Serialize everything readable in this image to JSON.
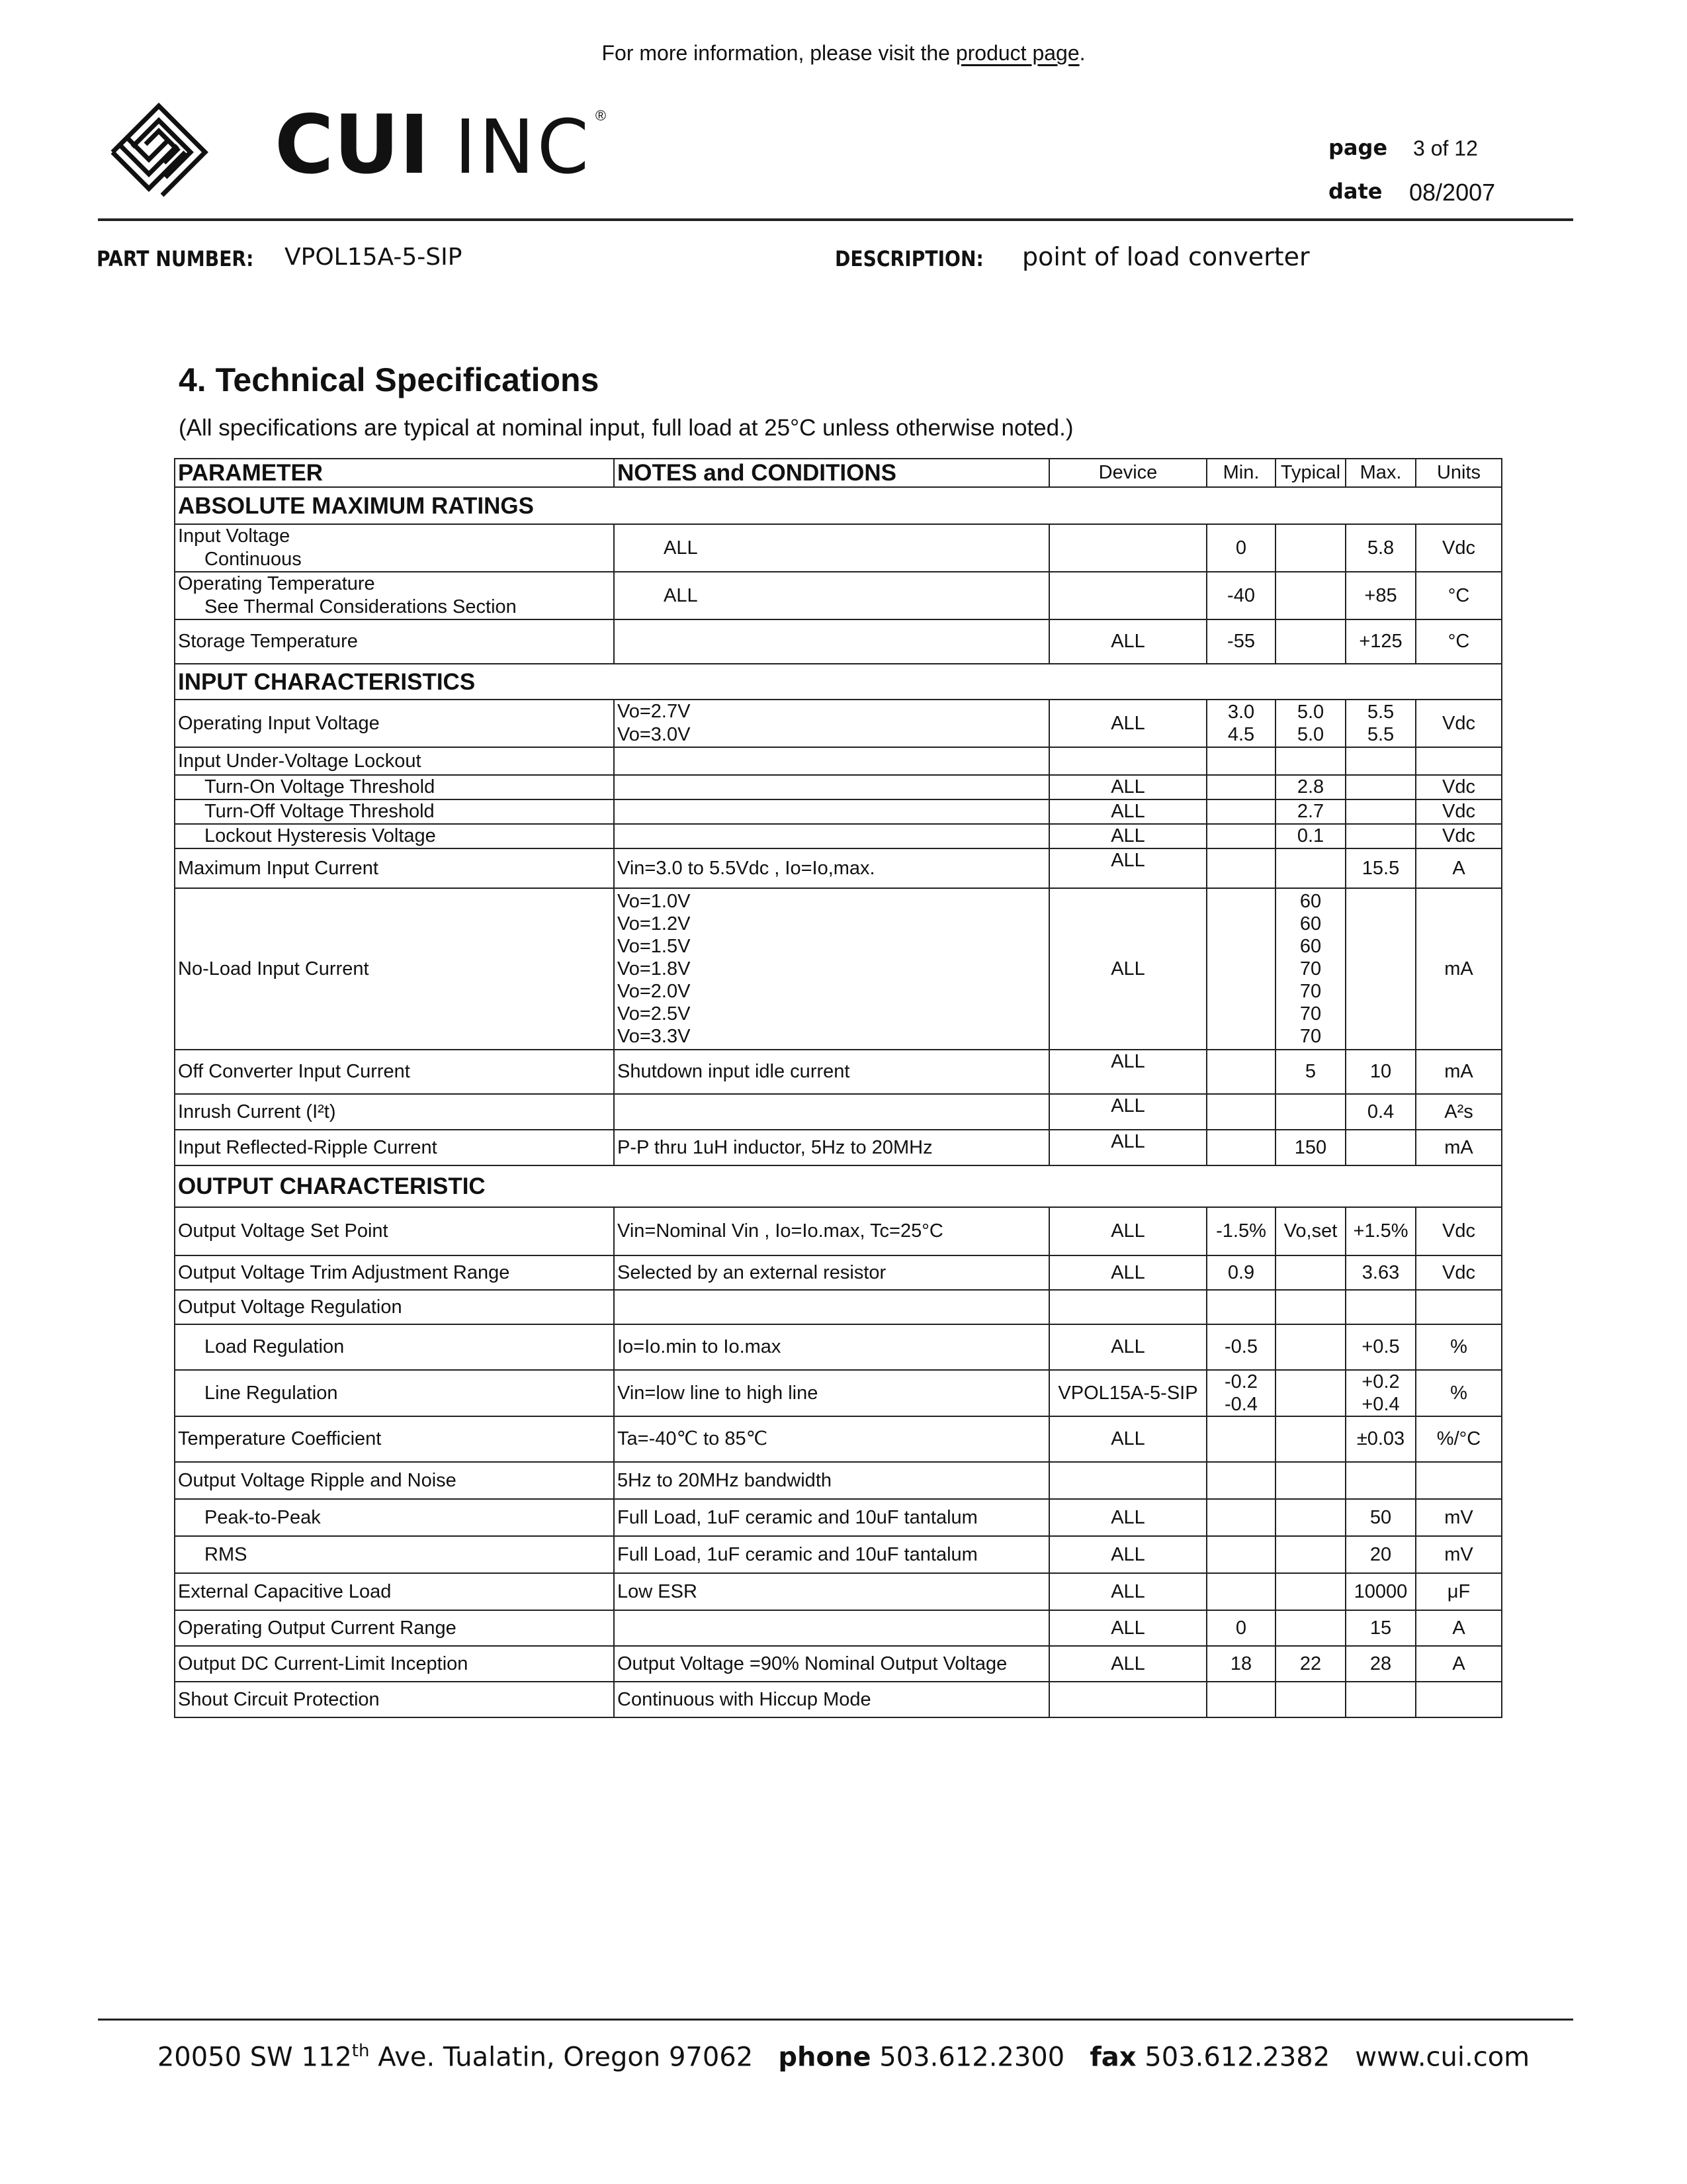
{
  "top_note": {
    "text": "For more information, please visit the ",
    "link": "product page",
    "end": "."
  },
  "logo": {
    "name_bold": "CUI",
    "name_light": "INC",
    "registered": "®"
  },
  "meta": {
    "page_label": "page",
    "page_value": "3 of 12",
    "date_label": "date",
    "date_value": "08/2007"
  },
  "part": {
    "label": "PART NUMBER:",
    "value": "VPOL15A-5-SIP"
  },
  "description": {
    "label": "DESCRIPTION:",
    "value": "point of load converter"
  },
  "section": {
    "title": "4. Technical Specifications",
    "subtitle": "(All specifications are typical at nominal input, full load at 25°C unless otherwise noted.)"
  },
  "table": {
    "headers": [
      "PARAMETER",
      "NOTES and CONDITIONS",
      "Device",
      "Min.",
      "Typical",
      "Max.",
      "Units"
    ],
    "rows": [
      {
        "section": "ABSOLUTE MAXIMUM RATINGS"
      },
      {
        "param": [
          "Input Voltage",
          "Continuous"
        ],
        "notes": [
          "ALL"
        ],
        "notes_indent": true,
        "device": "",
        "min": "0",
        "typ": "",
        "max": "5.8",
        "units": "Vdc"
      },
      {
        "param": [
          "Operating Temperature",
          "See Thermal Considerations Section"
        ],
        "notes": [
          "ALL"
        ],
        "notes_indent": true,
        "device": "",
        "min": "-40",
        "typ": "",
        "max": "+85",
        "units": "°C"
      },
      {
        "param": [
          "Storage Temperature"
        ],
        "notes": [
          ""
        ],
        "device": "ALL",
        "min": "-55",
        "typ": "",
        "max": "+125",
        "units": "°C"
      },
      {
        "section": "INPUT CHARACTERISTICS"
      },
      {
        "param": [
          "Operating Input Voltage"
        ],
        "notes": [
          "Vo=2.7V",
          "Vo=3.0V"
        ],
        "device": "ALL",
        "min": "3.0\n4.5",
        "typ": "5.0\n5.0",
        "max": "5.5\n5.5",
        "units": "Vdc"
      },
      {
        "param": [
          "Input Under-Voltage Lockout"
        ],
        "notes": [
          ""
        ],
        "device": "",
        "min": "",
        "typ": "",
        "max": "",
        "units": ""
      },
      {
        "param": [
          "Turn-On Voltage Threshold"
        ],
        "indent": true,
        "notes": [
          ""
        ],
        "device": "ALL",
        "min": "",
        "typ": "2.8",
        "max": "",
        "units": "Vdc"
      },
      {
        "param": [
          "Turn-Off Voltage Threshold"
        ],
        "indent": true,
        "notes": [
          ""
        ],
        "device": "ALL",
        "min": "",
        "typ": "2.7",
        "max": "",
        "units": "Vdc"
      },
      {
        "param": [
          "Lockout Hysteresis Voltage"
        ],
        "indent": true,
        "notes": [
          ""
        ],
        "device": "ALL",
        "min": "",
        "typ": "0.1",
        "max": "",
        "units": "Vdc"
      },
      {
        "param": [
          "Maximum Input Current"
        ],
        "notes": [
          "Vin=3.0 to 5.5Vdc , Io=Io,max."
        ],
        "device": "ALL",
        "device_top": true,
        "min": "",
        "typ": "",
        "max": "15.5",
        "units": "A"
      },
      {
        "param": [
          "No-Load Input Current"
        ],
        "notes": [
          "Vo=1.0V",
          "Vo=1.2V",
          "Vo=1.5V",
          "Vo=1.8V",
          "Vo=2.0V",
          "Vo=2.5V",
          "Vo=3.3V"
        ],
        "device": "ALL",
        "min": "",
        "typ": "60\n60\n60\n70\n70\n70\n70",
        "max": "",
        "units": "mA"
      },
      {
        "param": [
          "Off Converter Input Current"
        ],
        "notes": [
          "Shutdown input idle current"
        ],
        "device": "ALL",
        "device_top": true,
        "min": "",
        "typ": "5",
        "max": "10",
        "units": "mA"
      },
      {
        "param": [
          "Inrush Current (I²t)"
        ],
        "notes": [
          ""
        ],
        "device": "ALL",
        "device_top": true,
        "min": "",
        "typ": "",
        "max": "0.4",
        "units": "A²s"
      },
      {
        "param": [
          "Input Reflected-Ripple Current"
        ],
        "notes": [
          "P-P thru 1uH inductor, 5Hz to 20MHz"
        ],
        "device": "ALL",
        "device_top": true,
        "min": "",
        "typ": "150",
        "max": "",
        "units": "mA"
      },
      {
        "section": "OUTPUT CHARACTERISTIC"
      },
      {
        "param": [
          "Output Voltage Set Point"
        ],
        "notes": [
          "Vin=Nominal Vin , Io=Io.max, Tc=25°C"
        ],
        "device": "ALL",
        "min": "-1.5%",
        "typ": "Vo,set",
        "max": "+1.5%",
        "units": "Vdc"
      },
      {
        "param": [
          "Output Voltage Trim Adjustment Range"
        ],
        "notes": [
          "Selected by an external resistor"
        ],
        "device": "ALL",
        "min": "0.9",
        "typ": "",
        "max": "3.63",
        "units": "Vdc"
      },
      {
        "param": [
          "Output Voltage Regulation"
        ],
        "notes": [
          ""
        ],
        "device": "",
        "min": "",
        "typ": "",
        "max": "",
        "units": ""
      },
      {
        "param": [
          "Load Regulation"
        ],
        "indent": true,
        "notes": [
          "Io=Io.min to Io.max"
        ],
        "device": "ALL",
        "min": "-0.5",
        "typ": "",
        "max": "+0.5",
        "units": "%"
      },
      {
        "param": [
          "Line Regulation"
        ],
        "indent": true,
        "notes": [
          "Vin=low line to high line"
        ],
        "device": "VPOL15A-5-SIP",
        "min": "-0.2\n-0.4",
        "typ": "",
        "max": "+0.2\n+0.4",
        "units": "%"
      },
      {
        "param": [
          "Temperature Coefficient"
        ],
        "notes": [
          "Ta=-40℃ to 85℃"
        ],
        "device": "ALL",
        "min": "",
        "typ": "",
        "max": "±0.03",
        "units": "%/°C"
      },
      {
        "param": [
          "Output Voltage Ripple and Noise"
        ],
        "notes": [
          "5Hz to 20MHz bandwidth"
        ],
        "device": "",
        "min": "",
        "typ": "",
        "max": "",
        "units": ""
      },
      {
        "param": [
          "Peak-to-Peak"
        ],
        "indent": true,
        "notes": [
          "Full Load, 1uF ceramic and 10uF tantalum"
        ],
        "device": "ALL",
        "min": "",
        "typ": "",
        "max": "50",
        "units": "mV"
      },
      {
        "param": [
          "RMS"
        ],
        "indent": true,
        "notes": [
          "Full Load, 1uF ceramic and 10uF tantalum"
        ],
        "device": "ALL",
        "min": "",
        "typ": "",
        "max": "20",
        "units": "mV"
      },
      {
        "param": [
          "External Capacitive Load"
        ],
        "notes": [
          "Low ESR"
        ],
        "device": "ALL",
        "min": "",
        "typ": "",
        "max": "10000",
        "units": "μF"
      },
      {
        "param": [
          "Operating Output Current Range"
        ],
        "notes": [
          ""
        ],
        "device": "ALL",
        "min": "0",
        "typ": "",
        "max": "15",
        "units": "A"
      },
      {
        "param": [
          "Output DC Current-Limit Inception"
        ],
        "notes": [
          "Output Voltage =90% Nominal Output Voltage"
        ],
        "device": "ALL",
        "min": "18",
        "typ": "22",
        "max": "28",
        "units": "A"
      },
      {
        "param": [
          "Shout Circuit Protection"
        ],
        "notes": [
          "Continuous with Hiccup Mode"
        ],
        "device": "",
        "min": "",
        "typ": "",
        "max": "",
        "units": ""
      }
    ]
  },
  "footer": {
    "address_a": "20050 SW 112",
    "address_sup": "th",
    "address_b": " Ave. Tualatin, Oregon 97062",
    "phone_label": "phone",
    "phone": "503.612.2300",
    "fax_label": "fax",
    "fax": "503.612.2382",
    "web": "www.cui.com"
  }
}
